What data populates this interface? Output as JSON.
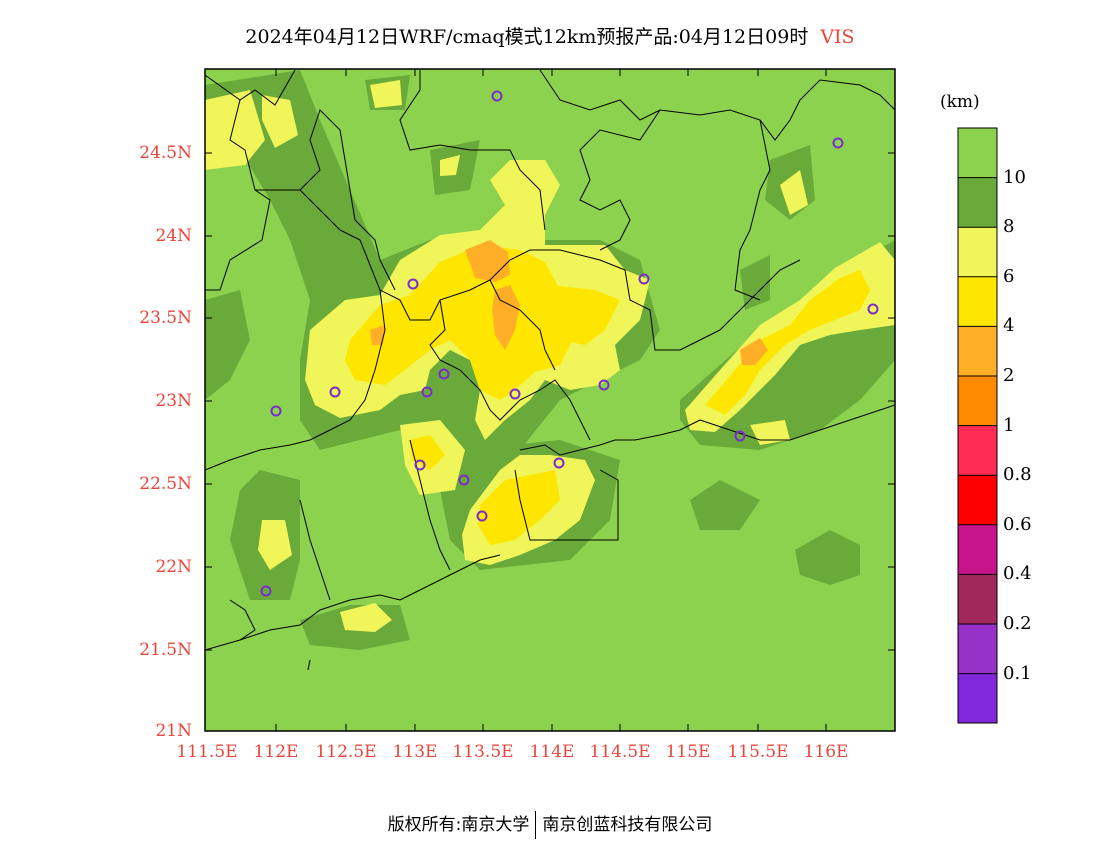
{
  "title": {
    "text": "2024年04月12日WRF/cmaq模式12km预报产品:04月12日09时",
    "variable": "VIS"
  },
  "axes": {
    "lat_ticks": [
      "24.5N",
      "24N",
      "23.5N",
      "23N",
      "22.5N",
      "22N",
      "21.5N",
      "21N"
    ],
    "lon_ticks": [
      "111.5E",
      "112E",
      "112.5E",
      "113E",
      "113.5E",
      "114E",
      "114.5E",
      "115E",
      "115.5E",
      "116E"
    ]
  },
  "colorbar": {
    "units": "(km)",
    "labels": [
      "10",
      "8",
      "6",
      "4",
      "2",
      "1",
      "0.8",
      "0.6",
      "0.4",
      "0.2",
      "0.1"
    ],
    "colors": [
      "#8cd24f",
      "#6aaa3a",
      "#f0f55a",
      "#ffe600",
      "#ffae28",
      "#ff8c00",
      "#ff2d55",
      "#ff0000",
      "#c8148c",
      "#a0285a",
      "#9632c8",
      "#8228dc"
    ]
  },
  "footer": {
    "left": "版权所有:南京大学",
    "right": "南京创蓝科技有限公司"
  }
}
